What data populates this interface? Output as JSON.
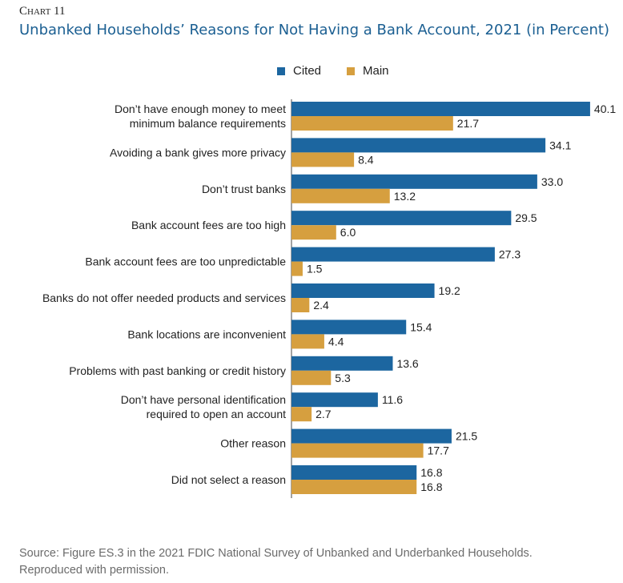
{
  "header": {
    "chart_number": "Chart 11",
    "title": "Unbanked Households’ Reasons for Not Having a Bank Account, 2021 (in Percent)"
  },
  "colors": {
    "cited": "#1c66a0",
    "main": "#d69f3f",
    "axis": "#444444",
    "text": "#222222"
  },
  "chart_data": {
    "type": "bar",
    "orientation": "horizontal",
    "title": "Unbanked Households’ Reasons for Not Having a Bank Account, 2021 (in Percent)",
    "legend_position": "top-center",
    "grid": false,
    "categories": [
      [
        "Don’t have enough money to meet",
        "minimum balance requirements"
      ],
      [
        "Avoiding a bank gives more privacy"
      ],
      [
        "Don’t trust banks"
      ],
      [
        "Bank account fees are too high"
      ],
      [
        "Bank account fees are too unpredictable"
      ],
      [
        "Banks do not offer needed products and services"
      ],
      [
        "Bank locations are inconvenient"
      ],
      [
        "Problems with past banking or credit history"
      ],
      [
        "Don’t have personal identification",
        "required to open an account"
      ],
      [
        "Other reason"
      ],
      [
        "Did not select a reason"
      ]
    ],
    "series": [
      {
        "name": "Cited",
        "values": [
          40.1,
          34.1,
          33.0,
          29.5,
          27.3,
          19.2,
          15.4,
          13.6,
          11.6,
          21.5,
          16.8
        ],
        "labels": [
          "40.1",
          "34.1",
          "33.0",
          "29.5",
          "27.3",
          "19.2",
          "15.4",
          "13.6",
          "11.6",
          "21.5",
          "16.8"
        ]
      },
      {
        "name": "Main",
        "values": [
          21.7,
          8.4,
          13.2,
          6.0,
          1.5,
          2.4,
          4.4,
          5.3,
          2.7,
          17.7,
          16.8
        ],
        "labels": [
          "21.7",
          "8.4",
          "13.2",
          "6.0",
          "1.5",
          "2.4",
          "4.4",
          "5.3",
          "2.7",
          "17.7",
          "16.8"
        ]
      }
    ],
    "xlim": [
      0,
      42
    ]
  },
  "footer": {
    "source_line1": "Source: Figure ES.3 in the 2021 FDIC National Survey of Unbanked and Underbanked Households.",
    "source_line2": "Reproduced with permission."
  }
}
